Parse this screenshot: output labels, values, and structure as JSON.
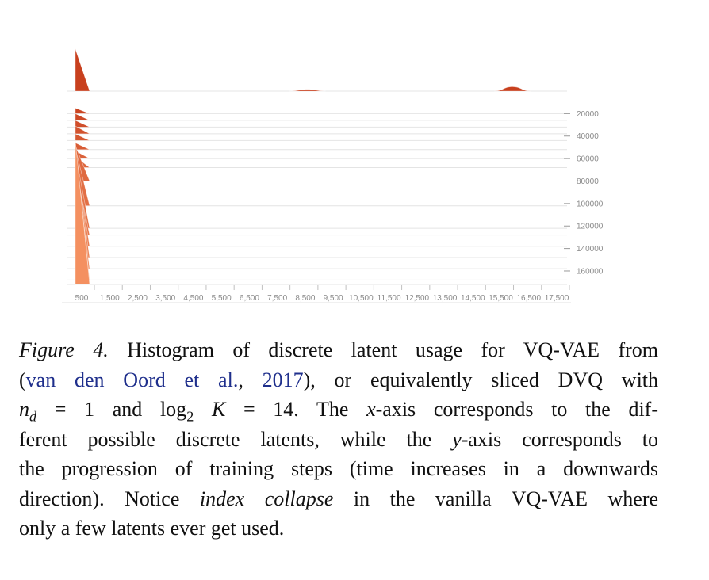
{
  "chart_data": {
    "type": "ridgeline-histogram",
    "x_tick_labels": [
      "500",
      "1,500",
      "2,500",
      "3,500",
      "4,500",
      "5,500",
      "6,500",
      "7,500",
      "8,500",
      "9,500",
      "10,500",
      "11,500",
      "12,500",
      "13,500",
      "14,500",
      "15,500",
      "16,500",
      "17,500"
    ],
    "y_tick_labels": [
      "20000",
      "40000",
      "60000",
      "80000",
      "100000",
      "120000",
      "140000",
      "160000"
    ],
    "y_ticks": [
      20000,
      40000,
      60000,
      80000,
      100000,
      120000,
      140000,
      160000
    ],
    "x_range": [
      0,
      18000
    ],
    "colors": {
      "early": "#c8401e",
      "late": "#f49060",
      "baseline": "#e4e4e4"
    },
    "snapshots": [
      {
        "step": 0,
        "bins": [
          [
            0,
            38000
          ],
          [
            8500,
            1500
          ],
          [
            16000,
            4000
          ]
        ]
      },
      {
        "step": 20000,
        "bins": [
          [
            0,
            5000
          ]
        ]
      },
      {
        "step": 26000,
        "bins": [
          [
            0,
            6000
          ]
        ]
      },
      {
        "step": 32000,
        "bins": [
          [
            0,
            6000
          ]
        ]
      },
      {
        "step": 38000,
        "bins": [
          [
            0,
            7000
          ]
        ]
      },
      {
        "step": 44000,
        "bins": [
          [
            0,
            6000
          ]
        ]
      },
      {
        "step": 52000,
        "bins": [
          [
            0,
            6000
          ]
        ]
      },
      {
        "step": 60000,
        "bins": [
          [
            0,
            7000
          ]
        ]
      },
      {
        "step": 68000,
        "bins": [
          [
            0,
            10000
          ]
        ]
      },
      {
        "step": 80000,
        "bins": [
          [
            0,
            32000
          ]
        ]
      },
      {
        "step": 102000,
        "bins": [
          [
            0,
            52000
          ]
        ]
      },
      {
        "step": 122000,
        "bins": [
          [
            0,
            68000
          ]
        ]
      },
      {
        "step": 128000,
        "bins": [
          [
            0,
            60000
          ]
        ]
      },
      {
        "step": 138000,
        "bins": [
          [
            0,
            78000
          ]
        ]
      },
      {
        "step": 148000,
        "bins": [
          [
            0,
            90000
          ]
        ]
      },
      {
        "step": 158000,
        "bins": [
          [
            0,
            100000
          ]
        ]
      },
      {
        "step": 168000,
        "bins": [
          [
            0,
            120000
          ]
        ]
      },
      {
        "step": 172000,
        "bins": [
          [
            0,
            130000
          ]
        ]
      }
    ]
  },
  "caption": {
    "figure_label": "Figure 4.",
    "l1_text": " Histogram of discrete latent usage for VQ-VAE from",
    "l2_open": "(",
    "l2_cite_authors": "van den Oord et al.",
    "l2_comma": ", ",
    "l2_cite_year": "2017",
    "l2_rest": "), or equivalently sliced DVQ with",
    "l3_nd": "n",
    "l3_nd_sub": "d",
    "l3_eq1": " = 1 and log",
    "l3_log_sub": "2",
    "l3_K": " K",
    "l3_eq2": " = 14.  The ",
    "l3_x": "x",
    "l3_rest": "-axis corresponds to the dif-",
    "l4_pre": "ferent possible discrete latents, while the ",
    "l4_y": "y",
    "l4_rest": "-axis corresponds to",
    "l5": "the progression of training steps (time increases in a downwards",
    "l6_pre": "direction).  Notice ",
    "l6_italic": "index collapse",
    "l6_rest": " in the vanilla VQ-VAE where",
    "l7": "only a few latents ever get used."
  }
}
